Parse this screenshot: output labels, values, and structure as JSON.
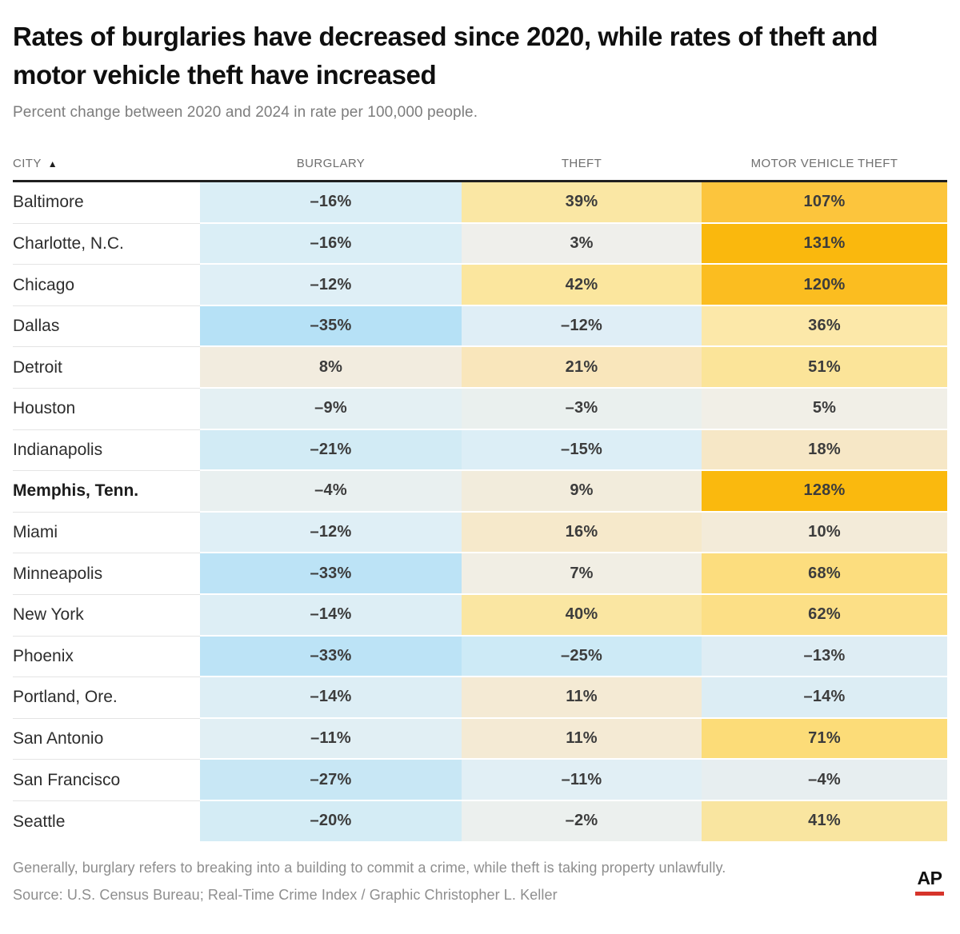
{
  "title": "Rates of burglaries have decreased since 2020, while rates of theft and motor vehicle theft have increased",
  "subtitle": "Percent change between 2020 and 2024 in rate per 100,000 people.",
  "columns": {
    "city": "CITY",
    "sort_indicator": "▲",
    "burglary": "BURGLARY",
    "theft": "THEFT",
    "mvt": "MOTOR VEHICLE THEFT"
  },
  "rows": [
    {
      "city": "Baltimore",
      "bold": false,
      "burglary": {
        "text": "–16%",
        "bg": "#daeef6"
      },
      "theft": {
        "text": "39%",
        "bg": "#fae7a4"
      },
      "mvt": {
        "text": "107%",
        "bg": "#fcc53d"
      }
    },
    {
      "city": "Charlotte, N.C.",
      "bold": false,
      "burglary": {
        "text": "–16%",
        "bg": "#daeef6"
      },
      "theft": {
        "text": "3%",
        "bg": "#efefeb"
      },
      "mvt": {
        "text": "131%",
        "bg": "#fab80d"
      }
    },
    {
      "city": "Chicago",
      "bold": false,
      "burglary": {
        "text": "–12%",
        "bg": "#dfeff6"
      },
      "theft": {
        "text": "42%",
        "bg": "#fbe69e"
      },
      "mvt": {
        "text": "120%",
        "bg": "#fbbd20"
      }
    },
    {
      "city": "Dallas",
      "bold": false,
      "burglary": {
        "text": "–35%",
        "bg": "#b6e1f6"
      },
      "theft": {
        "text": "–12%",
        "bg": "#dfeef6"
      },
      "mvt": {
        "text": "36%",
        "bg": "#fce8a9"
      }
    },
    {
      "city": "Detroit",
      "bold": false,
      "burglary": {
        "text": "8%",
        "bg": "#f2ecdf"
      },
      "theft": {
        "text": "21%",
        "bg": "#f9e6bb"
      },
      "mvt": {
        "text": "51%",
        "bg": "#fbe499"
      }
    },
    {
      "city": "Houston",
      "bold": false,
      "burglary": {
        "text": "–9%",
        "bg": "#e4f0f3"
      },
      "theft": {
        "text": "–3%",
        "bg": "#eaf0ee"
      },
      "mvt": {
        "text": "5%",
        "bg": "#f1efe7"
      }
    },
    {
      "city": "Indianapolis",
      "bold": false,
      "burglary": {
        "text": "–21%",
        "bg": "#d2ebf5"
      },
      "theft": {
        "text": "–15%",
        "bg": "#dceef6"
      },
      "mvt": {
        "text": "18%",
        "bg": "#f6e7c6"
      }
    },
    {
      "city": "Memphis, Tenn.",
      "bold": true,
      "burglary": {
        "text": "–4%",
        "bg": "#e9f0f0"
      },
      "theft": {
        "text": "9%",
        "bg": "#f2ecdc"
      },
      "mvt": {
        "text": "128%",
        "bg": "#fab90e"
      }
    },
    {
      "city": "Miami",
      "bold": false,
      "burglary": {
        "text": "–12%",
        "bg": "#dfeff6"
      },
      "theft": {
        "text": "16%",
        "bg": "#f6e9cb"
      },
      "mvt": {
        "text": "10%",
        "bg": "#f3ebd9"
      }
    },
    {
      "city": "Minneapolis",
      "bold": false,
      "burglary": {
        "text": "–33%",
        "bg": "#bce3f6"
      },
      "theft": {
        "text": "7%",
        "bg": "#f1eee4"
      },
      "mvt": {
        "text": "68%",
        "bg": "#fcdd7e"
      }
    },
    {
      "city": "New York",
      "bold": false,
      "burglary": {
        "text": "–14%",
        "bg": "#ddeef5"
      },
      "theft": {
        "text": "40%",
        "bg": "#fae6a2"
      },
      "mvt": {
        "text": "62%",
        "bg": "#fcdf86"
      }
    },
    {
      "city": "Phoenix",
      "bold": false,
      "burglary": {
        "text": "–33%",
        "bg": "#bce3f6"
      },
      "theft": {
        "text": "–25%",
        "bg": "#cdeaf6"
      },
      "mvt": {
        "text": "–13%",
        "bg": "#deedf4"
      }
    },
    {
      "city": "Portland, Ore.",
      "bold": false,
      "burglary": {
        "text": "–14%",
        "bg": "#ddeef5"
      },
      "theft": {
        "text": "11%",
        "bg": "#f4ead4"
      },
      "mvt": {
        "text": "–14%",
        "bg": "#dcedf4"
      }
    },
    {
      "city": "San Antonio",
      "bold": false,
      "burglary": {
        "text": "–11%",
        "bg": "#e1eff4"
      },
      "theft": {
        "text": "11%",
        "bg": "#f4ead4"
      },
      "mvt": {
        "text": "71%",
        "bg": "#fcdc78"
      }
    },
    {
      "city": "San Francisco",
      "bold": false,
      "burglary": {
        "text": "–27%",
        "bg": "#c8e7f5"
      },
      "theft": {
        "text": "–11%",
        "bg": "#e1eff5"
      },
      "mvt": {
        "text": "–4%",
        "bg": "#e7eef0"
      }
    },
    {
      "city": "Seattle",
      "bold": false,
      "burglary": {
        "text": "–20%",
        "bg": "#d4ecf5"
      },
      "theft": {
        "text": "–2%",
        "bg": "#ecf0ee"
      },
      "mvt": {
        "text": "41%",
        "bg": "#f9e5a0"
      }
    }
  ],
  "note": "Generally, burglary refers to breaking into a building to commit a crime, while theft is taking property unlawfully.",
  "source": "Source: U.S. Census Bureau; Real-Time Crime Index / Graphic Christopher L. Keller",
  "logo": {
    "text": "AP",
    "bar_color": "#d6342a"
  },
  "chart_data": {
    "type": "heatmap",
    "title": "Rates of burglaries have decreased since 2020, while rates of theft and motor vehicle theft have increased",
    "subtitle": "Percent change between 2020 and 2024 in rate per 100,000 people.",
    "categories": [
      "Baltimore",
      "Charlotte, N.C.",
      "Chicago",
      "Dallas",
      "Detroit",
      "Houston",
      "Indianapolis",
      "Memphis, Tenn.",
      "Miami",
      "Minneapolis",
      "New York",
      "Phoenix",
      "Portland, Ore.",
      "San Antonio",
      "San Francisco",
      "Seattle"
    ],
    "series": [
      {
        "name": "Burglary",
        "values": [
          -16,
          -16,
          -12,
          -35,
          8,
          -9,
          -21,
          -4,
          -12,
          -33,
          -14,
          -33,
          -14,
          -11,
          -27,
          -20
        ]
      },
      {
        "name": "Theft",
        "values": [
          39,
          3,
          42,
          -12,
          21,
          -3,
          -15,
          9,
          16,
          7,
          40,
          -25,
          11,
          11,
          -11,
          -2
        ]
      },
      {
        "name": "Motor vehicle theft",
        "values": [
          107,
          131,
          120,
          36,
          51,
          5,
          18,
          128,
          10,
          68,
          62,
          -13,
          -14,
          71,
          -4,
          41
        ]
      }
    ],
    "units": "percent change, 2020–2024, rate per 100,000 people",
    "sort": "city ascending",
    "highlighted_row": "Memphis, Tenn.",
    "color_scale": {
      "negative_max": "#b6e1f6",
      "zero": "#f0f0ec",
      "positive_max": "#fab80d"
    }
  }
}
